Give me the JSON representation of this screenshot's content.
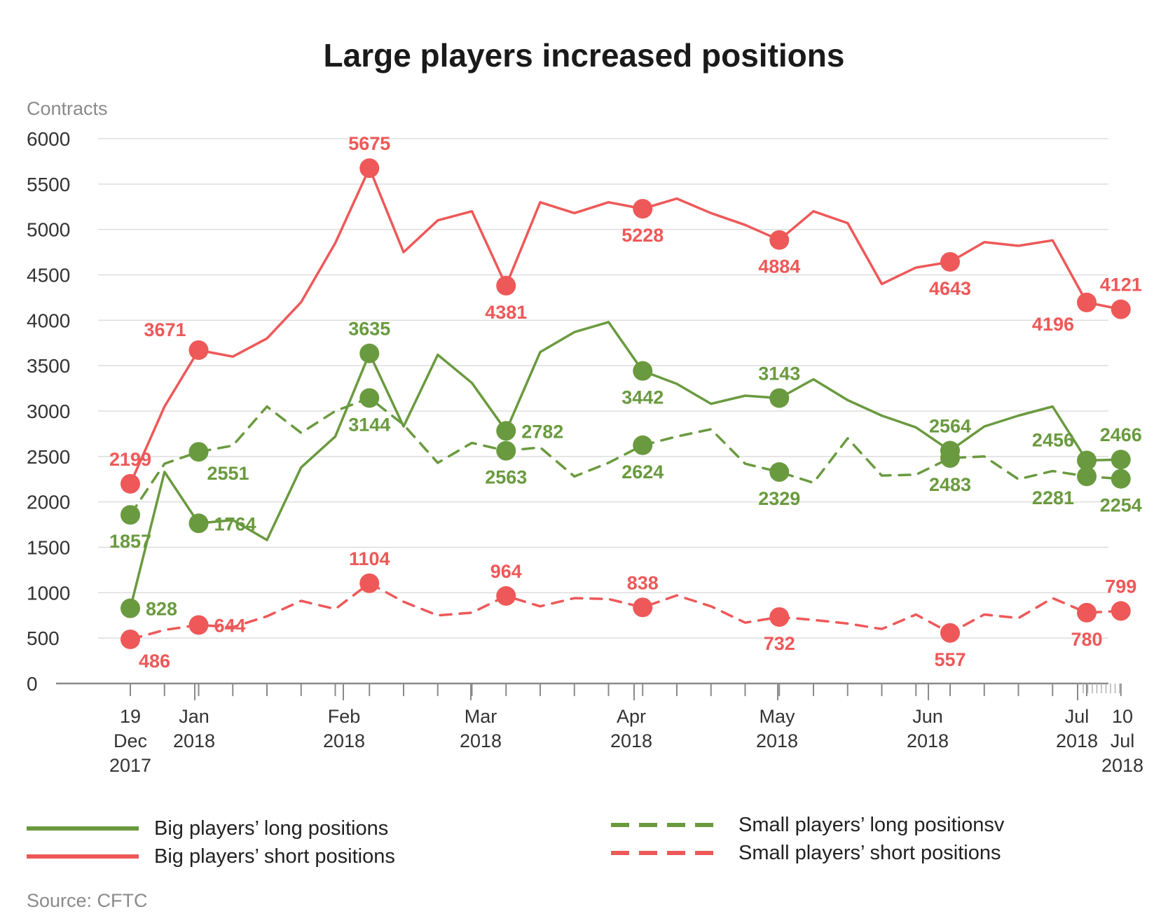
{
  "title": "Large players increased positions",
  "source": "Source: CFTC",
  "colors": {
    "green": "#6a9a3f",
    "red": "#ee5858",
    "grid": "#dddddd",
    "axis": "#8a8a8a"
  },
  "chart_data": {
    "type": "line",
    "title": "Large players increased positions",
    "ylabel": "Contracts",
    "ylim": [
      0,
      6000
    ],
    "yticks": [
      0,
      500,
      1000,
      1500,
      2000,
      2500,
      3000,
      3500,
      4000,
      4500,
      5000,
      5500,
      6000
    ],
    "grid": true,
    "legend_position": "bottom",
    "x": [
      "2017-12-19",
      "2017-12-26",
      "2018-01-02",
      "2018-01-09",
      "2018-01-16",
      "2018-01-23",
      "2018-01-30",
      "2018-02-06",
      "2018-02-13",
      "2018-02-20",
      "2018-02-27",
      "2018-03-06",
      "2018-03-13",
      "2018-03-20",
      "2018-03-27",
      "2018-04-03",
      "2018-04-10",
      "2018-04-17",
      "2018-04-24",
      "2018-05-01",
      "2018-05-08",
      "2018-05-15",
      "2018-05-22",
      "2018-05-29",
      "2018-06-05",
      "2018-06-12",
      "2018-06-19",
      "2018-06-26",
      "2018-07-03",
      "2018-07-10"
    ],
    "x_ticks": [
      {
        "label": [
          "19",
          "Dec",
          "2017"
        ]
      },
      {
        "label": [
          "Jan",
          "2018"
        ]
      },
      {
        "label": [
          "Feb",
          "2018"
        ]
      },
      {
        "label": [
          "Mar",
          "2018"
        ]
      },
      {
        "label": [
          "Apr",
          "2018"
        ]
      },
      {
        "label": [
          "May",
          "2018"
        ]
      },
      {
        "label": [
          "Jun",
          "2018"
        ]
      },
      {
        "label": [
          "Jul",
          "2018"
        ]
      },
      {
        "label": [
          "10",
          "Jul",
          "2018"
        ]
      }
    ],
    "series": [
      {
        "name": "Big players’ long positions",
        "color": "#6a9a3f",
        "dash": false,
        "values": [
          828,
          2330,
          1764,
          1800,
          1580,
          2380,
          2720,
          3635,
          2830,
          3620,
          3310,
          2782,
          3650,
          3870,
          3980,
          3442,
          3300,
          3080,
          3170,
          3143,
          3350,
          3120,
          2950,
          2820,
          2564,
          2830,
          2950,
          3050,
          2456,
          2466
        ],
        "labels": [
          {
            "i": 0,
            "text": "828",
            "pos": "right"
          },
          {
            "i": 2,
            "text": "1764",
            "pos": "right"
          },
          {
            "i": 7,
            "text": "3635",
            "pos": "above"
          },
          {
            "i": 11,
            "text": "2782",
            "pos": "right"
          },
          {
            "i": 15,
            "text": "3442",
            "pos": "below"
          },
          {
            "i": 19,
            "text": "3143",
            "pos": "above"
          },
          {
            "i": 24,
            "text": "2564",
            "pos": "above"
          },
          {
            "i": 28,
            "text": "2456",
            "pos": "upleft"
          },
          {
            "i": 29,
            "text": "2466",
            "pos": "above"
          }
        ]
      },
      {
        "name": "Big players’ short positions",
        "color": "#ee5858",
        "dash": false,
        "values": [
          2199,
          3050,
          3671,
          3600,
          3800,
          4200,
          4850,
          5675,
          4750,
          5100,
          5200,
          4381,
          5300,
          5180,
          5300,
          5228,
          5340,
          5180,
          5050,
          4884,
          5200,
          5070,
          4400,
          4580,
          4643,
          4860,
          4820,
          4880,
          4196,
          4121
        ],
        "labels": [
          {
            "i": 0,
            "text": "2199",
            "pos": "above"
          },
          {
            "i": 2,
            "text": "3671",
            "pos": "upleft"
          },
          {
            "i": 7,
            "text": "5675",
            "pos": "above"
          },
          {
            "i": 11,
            "text": "4381",
            "pos": "below"
          },
          {
            "i": 15,
            "text": "5228",
            "pos": "below"
          },
          {
            "i": 19,
            "text": "4884",
            "pos": "below"
          },
          {
            "i": 24,
            "text": "4643",
            "pos": "below"
          },
          {
            "i": 28,
            "text": "4196",
            "pos": "downleft"
          },
          {
            "i": 29,
            "text": "4121",
            "pos": "above"
          }
        ]
      },
      {
        "name": "Small players’ long positionsv",
        "color": "#6a9a3f",
        "dash": true,
        "values": [
          1857,
          2420,
          2551,
          2620,
          3050,
          2760,
          3000,
          3144,
          2850,
          2430,
          2650,
          2563,
          2600,
          2280,
          2430,
          2624,
          2720,
          2800,
          2420,
          2329,
          2210,
          2700,
          2290,
          2300,
          2483,
          2500,
          2250,
          2340,
          2281,
          2254
        ],
        "labels": [
          {
            "i": 0,
            "text": "1857",
            "pos": "below"
          },
          {
            "i": 2,
            "text": "2551",
            "pos": "downright"
          },
          {
            "i": 7,
            "text": "3144",
            "pos": "below"
          },
          {
            "i": 11,
            "text": "2563",
            "pos": "below"
          },
          {
            "i": 15,
            "text": "2624",
            "pos": "below"
          },
          {
            "i": 19,
            "text": "2329",
            "pos": "below"
          },
          {
            "i": 24,
            "text": "2483",
            "pos": "below"
          },
          {
            "i": 28,
            "text": "2281",
            "pos": "downleft"
          },
          {
            "i": 29,
            "text": "2254",
            "pos": "below"
          }
        ]
      },
      {
        "name": "Small players’ short positions",
        "color": "#ee5858",
        "dash": true,
        "values": [
          486,
          590,
          644,
          620,
          740,
          910,
          820,
          1104,
          900,
          750,
          780,
          964,
          850,
          940,
          930,
          838,
          970,
          850,
          670,
          732,
          700,
          660,
          600,
          760,
          557,
          760,
          720,
          940,
          780,
          799
        ],
        "labels": [
          {
            "i": 0,
            "text": "486",
            "pos": "downright"
          },
          {
            "i": 2,
            "text": "644",
            "pos": "right"
          },
          {
            "i": 7,
            "text": "1104",
            "pos": "above"
          },
          {
            "i": 11,
            "text": "964",
            "pos": "above"
          },
          {
            "i": 15,
            "text": "838",
            "pos": "above"
          },
          {
            "i": 19,
            "text": "732",
            "pos": "below"
          },
          {
            "i": 24,
            "text": "557",
            "pos": "below"
          },
          {
            "i": 28,
            "text": "780",
            "pos": "below"
          },
          {
            "i": 29,
            "text": "799",
            "pos": "above"
          }
        ]
      }
    ]
  }
}
